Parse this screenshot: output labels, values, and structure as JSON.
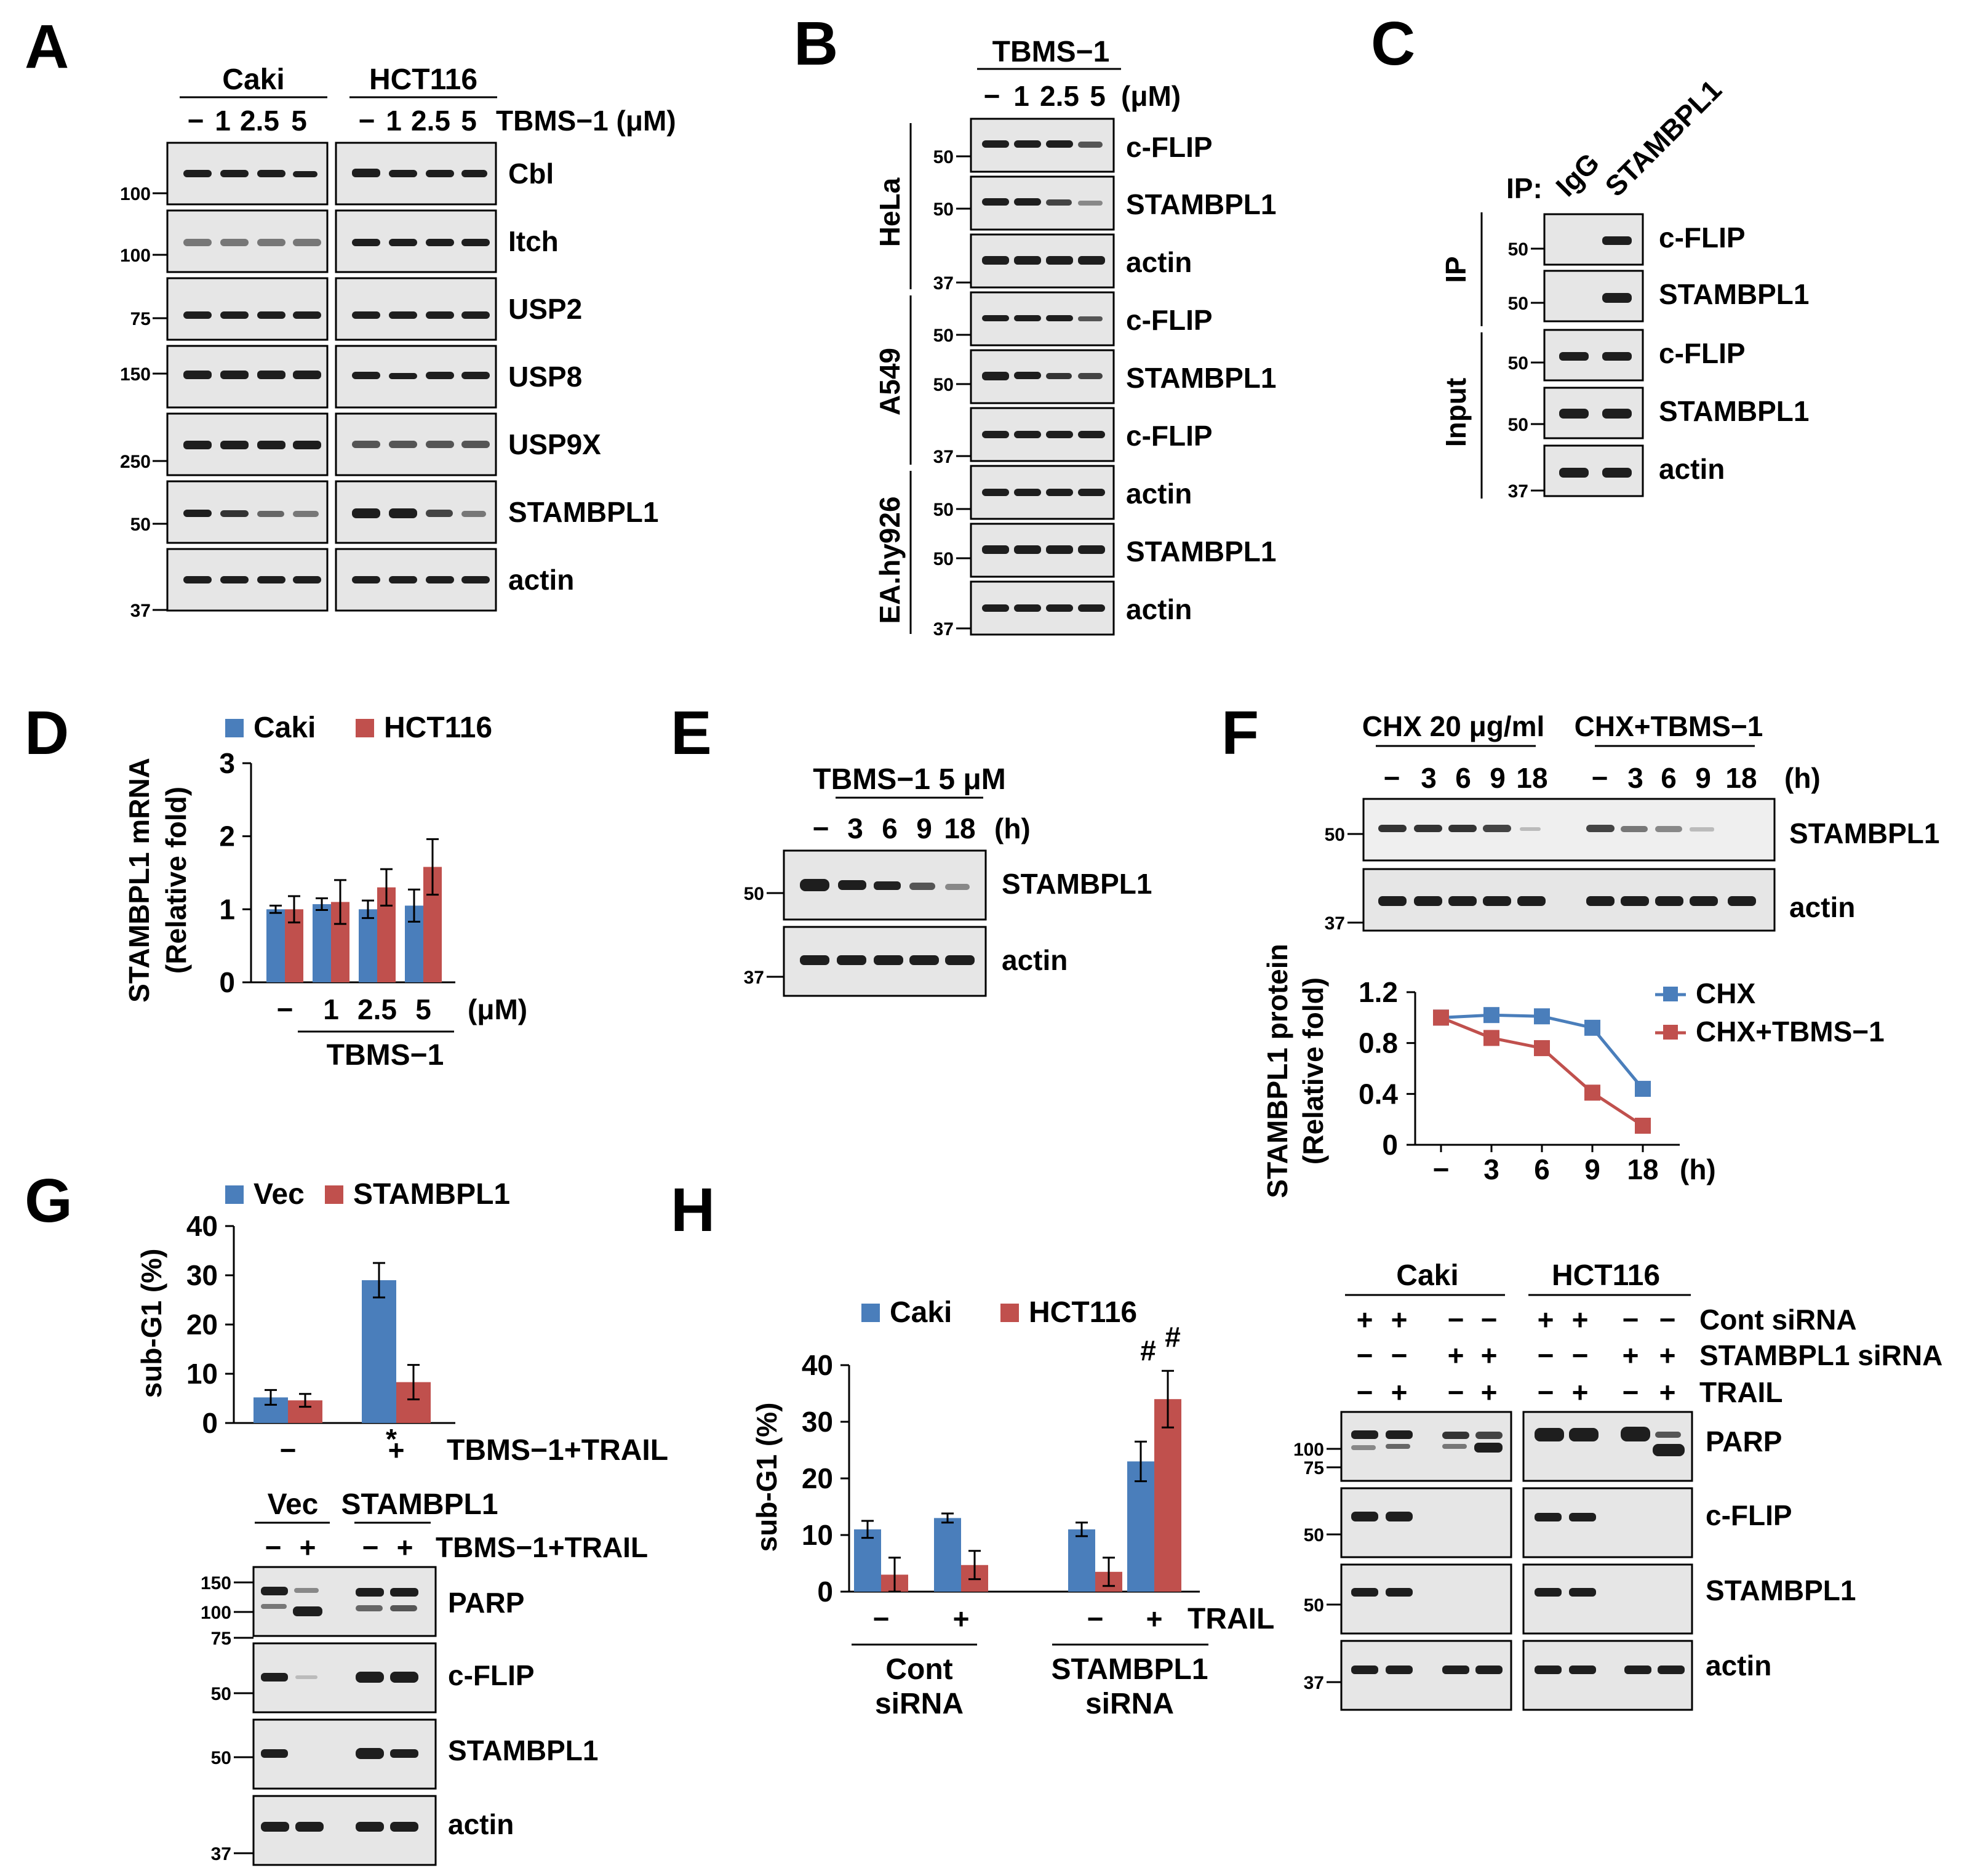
{
  "panels": {
    "A": {
      "letter": "A",
      "group_left": "Caki",
      "group_right": "HCT116",
      "lanes_left": [
        "−",
        "1",
        "2.5",
        "5"
      ],
      "lanes_right": [
        "−",
        "1",
        "2.5",
        "5"
      ],
      "treatment": "TBMS−1 (μM)",
      "rows": [
        {
          "mw": "100",
          "label": "Cbl"
        },
        {
          "mw": "100",
          "label": "Itch"
        },
        {
          "mw": "75",
          "label": "USP2"
        },
        {
          "mw": "150",
          "label": "USP8"
        },
        {
          "mw": "250",
          "label": "USP9X"
        },
        {
          "mw": "50",
          "label": "STAMBPL1"
        },
        {
          "mw": "37",
          "label": "actin"
        }
      ]
    },
    "B": {
      "letter": "B",
      "header": "TBMS−1",
      "lanes": [
        "−",
        "1",
        "2.5",
        "5"
      ],
      "unit": "(μM)",
      "cell_lines": [
        "HeLa",
        "A549",
        "EA.hy926"
      ],
      "rows": [
        {
          "mw": "50",
          "label": "c-FLIP"
        },
        {
          "mw": "50",
          "label": "STAMBPL1"
        },
        {
          "mw": "37",
          "label": "actin"
        },
        {
          "mw": "50",
          "label": "c-FLIP"
        },
        {
          "mw": "50",
          "label": "STAMBPL1"
        },
        {
          "mw": "37",
          "label": "c-FLIP"
        },
        {
          "mw": "50",
          "label": "actin"
        },
        {
          "mw": "50",
          "label": "STAMBPL1"
        },
        {
          "mw": "37",
          "label": "actin"
        }
      ]
    },
    "C": {
      "letter": "C",
      "ip_prefix": "IP:",
      "lane1": "IgG",
      "lane2": "STAMBPL1",
      "side_ip": "IP",
      "side_input": "Input",
      "rows": [
        {
          "mw": "50",
          "label": "c-FLIP"
        },
        {
          "mw": "50",
          "label": "STAMBPL1"
        },
        {
          "mw": "50",
          "label": "c-FLIP"
        },
        {
          "mw": "50",
          "label": "STAMBPL1"
        },
        {
          "mw": "37",
          "label": "actin"
        }
      ]
    },
    "E": {
      "letter": "E",
      "header": "TBMS−1 5 μM",
      "lanes": [
        "−",
        "3",
        "6",
        "9",
        "18"
      ],
      "unit": "(h)",
      "rows": [
        {
          "mw": "50",
          "label": "STAMBPL1"
        },
        {
          "mw": "37",
          "label": "actin"
        }
      ]
    },
    "F": {
      "letter": "F",
      "group_left": "CHX 20 μg/ml",
      "group_right": "CHX+TBMS−1",
      "lanes": [
        "−",
        "3",
        "6",
        "9",
        "18"
      ],
      "unit": "(h)",
      "rows": [
        {
          "mw": "50",
          "label": "STAMBPL1"
        },
        {
          "mw": "37",
          "label": "actin"
        }
      ]
    },
    "G": {
      "letter": "G",
      "blot_groups": [
        "Vec",
        "STAMBPL1"
      ],
      "blot_lanes": [
        "−",
        "+",
        "−",
        "+"
      ],
      "blot_treatment": "TBMS−1+TRAIL",
      "rows": [
        {
          "label": "PARP",
          "mws": [
            "150",
            "100",
            "75"
          ]
        },
        {
          "label": "c-FLIP",
          "mws": [
            "50"
          ]
        },
        {
          "label": "STAMBPL1",
          "mws": [
            "50"
          ]
        },
        {
          "label": "actin",
          "mws": [
            "37"
          ]
        }
      ],
      "significance": "*"
    },
    "H": {
      "letter": "H",
      "groups": [
        "Caki",
        "HCT116"
      ],
      "condition_rows": [
        {
          "label": "Cont siRNA",
          "signs": [
            "+",
            "+",
            "−",
            "−",
            "+",
            "+",
            "−",
            "−"
          ]
        },
        {
          "label": "STAMBPL1 siRNA",
          "signs": [
            "−",
            "−",
            "+",
            "+",
            "−",
            "−",
            "+",
            "+"
          ]
        },
        {
          "label": "TRAIL",
          "signs": [
            "−",
            "+",
            "−",
            "+",
            "−",
            "+",
            "−",
            "+"
          ]
        }
      ],
      "rows": [
        {
          "label": "PARP",
          "mws": [
            "100",
            "75"
          ]
        },
        {
          "label": "c-FLIP",
          "mws": [
            "50"
          ]
        },
        {
          "label": "STAMBPL1",
          "mws": [
            "50"
          ]
        },
        {
          "label": "actin",
          "mws": [
            "37"
          ]
        }
      ],
      "group_labels": [
        [
          "Cont",
          "siRNA"
        ],
        [
          "STAMBPL1",
          "siRNA"
        ]
      ],
      "significance": "#"
    }
  },
  "chart_data": [
    {
      "id": "D",
      "type": "bar",
      "title": "",
      "ylabel": "STAMBPL1 mRNA (Relative fold)",
      "ylabel_lines": [
        "STAMBPL1 mRNA",
        "(Relative fold)"
      ],
      "xlabel": "TBMS−1",
      "unit": "(μM)",
      "categories": [
        "−",
        "1",
        "2.5",
        "5"
      ],
      "ylim": [
        0,
        3
      ],
      "yticks": [
        "0",
        "1",
        "2",
        "3"
      ],
      "series": [
        {
          "name": "Caki",
          "color": "#4a7ebb",
          "values": [
            1.0,
            1.07,
            1.0,
            1.05
          ],
          "errors": [
            0.05,
            0.08,
            0.12,
            0.22
          ]
        },
        {
          "name": "HCT116",
          "color": "#c0504d",
          "values": [
            1.0,
            1.1,
            1.3,
            1.58
          ],
          "errors": [
            0.18,
            0.3,
            0.25,
            0.38
          ]
        }
      ]
    },
    {
      "id": "F-line",
      "type": "line",
      "title": "",
      "ylabel": "STAMBPL1 protein (Relative fold)",
      "ylabel_lines": [
        "STAMBPL1 protein",
        "(Relative fold)"
      ],
      "xlabel": "",
      "unit": "(h)",
      "x": [
        "−",
        "3",
        "6",
        "9",
        "18"
      ],
      "ylim": [
        0,
        1.2
      ],
      "yticks": [
        "0",
        "0.4",
        "0.8",
        "1.2"
      ],
      "series": [
        {
          "name": "CHX",
          "color": "#4a7ebb",
          "values": [
            1.0,
            1.02,
            1.01,
            0.92,
            0.44
          ]
        },
        {
          "name": "CHX+TBMS−1",
          "color": "#c0504d",
          "values": [
            1.0,
            0.84,
            0.76,
            0.41,
            0.15
          ]
        }
      ]
    },
    {
      "id": "G",
      "type": "bar",
      "title": "",
      "ylabel": "sub-G1 (%)",
      "xlabel": "TBMS−1+TRAIL",
      "categories": [
        "−",
        "+"
      ],
      "ylim": [
        0,
        40
      ],
      "yticks": [
        "0",
        "10",
        "20",
        "30",
        "40"
      ],
      "series": [
        {
          "name": "Vec",
          "color": "#4a7ebb",
          "values": [
            5.2,
            29.0
          ],
          "errors": [
            1.5,
            3.5
          ]
        },
        {
          "name": "STAMBPL1",
          "color": "#c0504d",
          "values": [
            4.6,
            8.3
          ],
          "errors": [
            1.3,
            3.5
          ]
        }
      ]
    },
    {
      "id": "H",
      "type": "bar",
      "title": "",
      "ylabel": "sub-G1 (%)",
      "xlabel": "TRAIL",
      "categories": [
        "−",
        "+",
        "−",
        "+"
      ],
      "ylim": [
        0,
        40
      ],
      "yticks": [
        "0",
        "10",
        "20",
        "30",
        "40"
      ],
      "series": [
        {
          "name": "Caki",
          "color": "#4a7ebb",
          "values": [
            11.0,
            13.0,
            11.0,
            23.0
          ],
          "errors": [
            1.5,
            0.8,
            1.2,
            3.5
          ]
        },
        {
          "name": "HCT116",
          "color": "#c0504d",
          "values": [
            3.0,
            4.7,
            3.5,
            34.0
          ],
          "errors": [
            3.0,
            2.5,
            2.5,
            5.0
          ]
        }
      ]
    }
  ]
}
